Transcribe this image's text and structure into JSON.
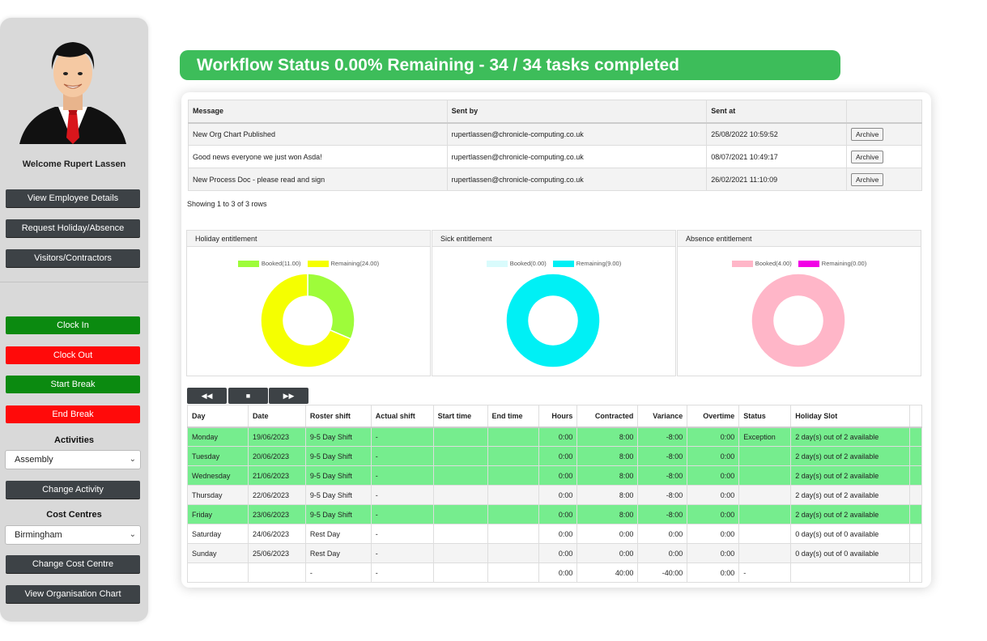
{
  "sidebar": {
    "welcome": "Welcome Rupert Lassen",
    "buttons": {
      "employee_details": "View Employee Details",
      "request_holiday": "Request Holiday/Absence",
      "visitors": "Visitors/Contractors",
      "clock_in": "Clock In",
      "clock_out": "Clock Out",
      "start_break": "Start Break",
      "end_break": "End Break",
      "change_activity": "Change Activity",
      "change_cost_centre": "Change Cost Centre",
      "org_chart": "View Organisation Chart"
    },
    "activities_label": "Activities",
    "activity_selected": "Assembly",
    "cost_centres_label": "Cost Centres",
    "cost_centre_selected": "Birmingham"
  },
  "banner": "Workflow Status 0.00% Remaining - 34 / 34 tasks completed",
  "messages": {
    "headers": [
      "Message",
      "Sent by",
      "Sent at",
      ""
    ],
    "rows": [
      {
        "message": "New Org Chart Published",
        "sent_by": "rupertlassen@chronicle-computing.co.uk",
        "sent_at": "25/08/2022 10:59:52",
        "action": "Archive"
      },
      {
        "message": "Good news everyone we just won Asda!",
        "sent_by": "rupertlassen@chronicle-computing.co.uk",
        "sent_at": "08/07/2021 10:49:17",
        "action": "Archive"
      },
      {
        "message": "New Process Doc - please read and sign",
        "sent_by": "rupertlassen@chronicle-computing.co.uk",
        "sent_at": "26/02/2021 11:10:09",
        "action": "Archive"
      }
    ],
    "showing": "Showing 1 to 3 of 3 rows"
  },
  "chart_data": [
    {
      "type": "pie",
      "title": "Holiday entitlement",
      "categories": [
        "Booked(11.00)",
        "Remaining(24.00)"
      ],
      "values": [
        11,
        24
      ],
      "colors": [
        "#9efc3a",
        "#f5ff00"
      ]
    },
    {
      "type": "pie",
      "title": "Sick entitlement",
      "categories": [
        "Booked(0.00)",
        "Remaining(9.00)"
      ],
      "values": [
        0,
        9
      ],
      "colors": [
        "#d9fbfc",
        "#00f0f5"
      ]
    },
    {
      "type": "pie",
      "title": "Absence entitlement",
      "categories": [
        "Booked(4.00)",
        "Remaining(0.00)"
      ],
      "values": [
        4,
        0
      ],
      "colors": [
        "#ffb6c8",
        "#f200e6"
      ]
    }
  ],
  "roster": {
    "nav": {
      "prev": "◀◀",
      "stop": "■",
      "next": "▶▶"
    },
    "headers": [
      "Day",
      "Date",
      "Roster shift",
      "Actual shift",
      "Start time",
      "End time",
      "Hours",
      "Contracted",
      "Variance",
      "Overtime",
      "Status",
      "Holiday Slot",
      ""
    ],
    "rows": [
      {
        "style": "g",
        "day": "Monday",
        "date": "19/06/2023",
        "roster": "9-5 Day Shift",
        "actual": "-",
        "start": "",
        "end": "",
        "hours": "0:00",
        "contracted": "8:00",
        "variance": "-8:00",
        "overtime": "0:00",
        "status": "Exception",
        "slot": "2 day(s) out of 2 available"
      },
      {
        "style": "g",
        "day": "Tuesday",
        "date": "20/06/2023",
        "roster": "9-5 Day Shift",
        "actual": "-",
        "start": "",
        "end": "",
        "hours": "0:00",
        "contracted": "8:00",
        "variance": "-8:00",
        "overtime": "0:00",
        "status": "",
        "slot": "2 day(s) out of 2 available"
      },
      {
        "style": "g",
        "day": "Wednesday",
        "date": "21/06/2023",
        "roster": "9-5 Day Shift",
        "actual": "-",
        "start": "",
        "end": "",
        "hours": "0:00",
        "contracted": "8:00",
        "variance": "-8:00",
        "overtime": "0:00",
        "status": "",
        "slot": "2 day(s) out of 2 available"
      },
      {
        "style": "gr",
        "day": "Thursday",
        "date": "22/06/2023",
        "roster": "9-5 Day Shift",
        "actual": "-",
        "start": "",
        "end": "",
        "hours": "0:00",
        "contracted": "8:00",
        "variance": "-8:00",
        "overtime": "0:00",
        "status": "",
        "slot": "2 day(s) out of 2 available"
      },
      {
        "style": "g",
        "day": "Friday",
        "date": "23/06/2023",
        "roster": "9-5 Day Shift",
        "actual": "-",
        "start": "",
        "end": "",
        "hours": "0:00",
        "contracted": "8:00",
        "variance": "-8:00",
        "overtime": "0:00",
        "status": "",
        "slot": "2 day(s) out of 2 available"
      },
      {
        "style": "w",
        "day": "Saturday",
        "date": "24/06/2023",
        "roster": "Rest Day",
        "actual": "-",
        "start": "",
        "end": "",
        "hours": "0:00",
        "contracted": "0:00",
        "variance": "0:00",
        "overtime": "0:00",
        "status": "",
        "slot": "0 day(s) out of 0 available"
      },
      {
        "style": "gr",
        "day": "Sunday",
        "date": "25/06/2023",
        "roster": "Rest Day",
        "actual": "-",
        "start": "",
        "end": "",
        "hours": "0:00",
        "contracted": "0:00",
        "variance": "0:00",
        "overtime": "0:00",
        "status": "",
        "slot": "0 day(s) out of 0 available"
      },
      {
        "style": "w",
        "day": "",
        "date": "",
        "roster": "-",
        "actual": "-",
        "start": "",
        "end": "",
        "hours": "0:00",
        "contracted": "40:00",
        "variance": "-40:00",
        "overtime": "0:00",
        "status": "-",
        "slot": ""
      }
    ]
  }
}
